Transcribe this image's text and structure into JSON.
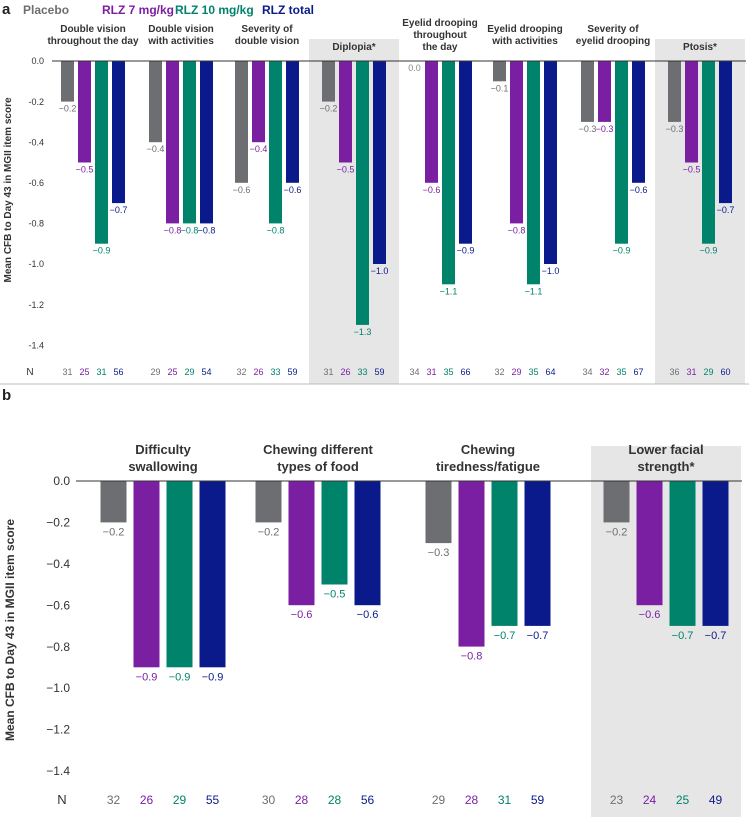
{
  "colors": {
    "placebo": "#6d6e71",
    "rlz7": "#7b1fa2",
    "rlz10": "#00836b",
    "rlztotal": "#0a1a8a",
    "highlight": "#e6e6e6"
  },
  "legend": {
    "items": [
      {
        "label": "Placebo",
        "color": "#6d6e71"
      },
      {
        "label": "RLZ 7 mg/kg",
        "color": "#7b1fa2"
      },
      {
        "label": "RLZ 10 mg/kg",
        "color": "#00836b"
      },
      {
        "label": "RLZ total",
        "color": "#0a1a8a"
      }
    ]
  },
  "chart_data": [
    {
      "panel_label": "a",
      "type": "bar",
      "ylabel": "Mean CFB to Day 43 in MGII item score",
      "ylim": [
        -1.4,
        0.0
      ],
      "yticks": [
        "0.0",
        "-0.2",
        "-0.4",
        "-0.6",
        "-0.8",
        "-1.0",
        "-1.2",
        "-1.4"
      ],
      "n_label": "N",
      "series_names": [
        "Placebo",
        "RLZ 7 mg/kg",
        "RLZ 10 mg/kg",
        "RLZ total"
      ],
      "groups": [
        {
          "title": [
            "Double vision",
            "throughout the day"
          ],
          "highlight": false,
          "values": [
            -0.2,
            -0.5,
            -0.9,
            -0.7
          ],
          "labels": [
            "−0.2",
            "−0.5",
            "−0.9",
            "−0.7"
          ],
          "n": [
            "31",
            "25",
            "31",
            "56"
          ]
        },
        {
          "title": [
            "Double vision",
            "with activities"
          ],
          "highlight": false,
          "values": [
            -0.4,
            -0.8,
            -0.8,
            -0.8
          ],
          "labels": [
            "−0.4",
            "−0.8",
            "−0.8",
            "−0.8"
          ],
          "n": [
            "29",
            "25",
            "29",
            "54"
          ]
        },
        {
          "title": [
            "Severity of",
            "double vision"
          ],
          "highlight": false,
          "values": [
            -0.6,
            -0.4,
            -0.8,
            -0.6
          ],
          "labels": [
            "−0.6",
            "−0.4",
            "−0.8",
            "−0.6"
          ],
          "n": [
            "32",
            "26",
            "33",
            "59"
          ]
        },
        {
          "title": [
            "Diplopia*"
          ],
          "highlight": true,
          "values": [
            -0.2,
            -0.5,
            -1.3,
            -1.0
          ],
          "labels": [
            "−0.2",
            "−0.5",
            "−1.3",
            "−1.0"
          ],
          "n": [
            "31",
            "26",
            "33",
            "59"
          ]
        },
        {
          "title": [
            "Eyelid drooping",
            "throughout",
            "the day"
          ],
          "highlight": false,
          "values": [
            0.0,
            -0.6,
            -1.1,
            -0.9
          ],
          "labels": [
            "0.0",
            "−0.6",
            "−1.1",
            "−0.9"
          ],
          "n": [
            "34",
            "31",
            "35",
            "66"
          ]
        },
        {
          "title": [
            "Eyelid drooping",
            "with activities"
          ],
          "highlight": false,
          "values": [
            -0.1,
            -0.8,
            -1.1,
            -1.0
          ],
          "labels": [
            "−0.1",
            "−0.8",
            "−1.1",
            "−1.0"
          ],
          "n": [
            "32",
            "29",
            "35",
            "64"
          ]
        },
        {
          "title": [
            "Severity of",
            "eyelid drooping"
          ],
          "highlight": false,
          "values": [
            -0.3,
            -0.3,
            -0.9,
            -0.6
          ],
          "labels": [
            "−0.3",
            "−0.3",
            "−0.9",
            "−0.6"
          ],
          "n": [
            "34",
            "32",
            "35",
            "67"
          ]
        },
        {
          "title": [
            "Ptosis*"
          ],
          "highlight": true,
          "values": [
            -0.3,
            -0.5,
            -0.9,
            -0.7
          ],
          "labels": [
            "−0.3",
            "−0.5",
            "−0.9",
            "−0.7"
          ],
          "n": [
            "36",
            "31",
            "29",
            "60"
          ]
        }
      ]
    },
    {
      "panel_label": "b",
      "type": "bar",
      "ylabel": "Mean CFB to Day 43 in MGII item score",
      "ylim": [
        -1.4,
        0.0
      ],
      "yticks": [
        "0.0",
        "−0.2",
        "−0.4",
        "−0.6",
        "−0.8",
        "−1.0",
        "−1.2",
        "−1.4"
      ],
      "n_label": "N",
      "series_names": [
        "Placebo",
        "RLZ 7 mg/kg",
        "RLZ 10 mg/kg",
        "RLZ total"
      ],
      "groups": [
        {
          "title": [
            "Difficulty",
            "swallowing"
          ],
          "highlight": false,
          "values": [
            -0.2,
            -0.9,
            -0.9,
            -0.9
          ],
          "labels": [
            "−0.2",
            "−0.9",
            "−0.9",
            "−0.9"
          ],
          "n": [
            "32",
            "26",
            "29",
            "55"
          ]
        },
        {
          "title": [
            "Chewing different",
            "types of food"
          ],
          "highlight": false,
          "values": [
            -0.2,
            -0.6,
            -0.5,
            -0.6
          ],
          "labels": [
            "−0.2",
            "−0.6",
            "−0.5",
            "−0.6"
          ],
          "n": [
            "30",
            "28",
            "28",
            "56"
          ]
        },
        {
          "title": [
            "Chewing",
            "tiredness/fatigue"
          ],
          "highlight": false,
          "values": [
            -0.3,
            -0.8,
            -0.7,
            -0.7
          ],
          "labels": [
            "−0.3",
            "−0.8",
            "−0.7",
            "−0.7"
          ],
          "n": [
            "29",
            "28",
            "31",
            "59"
          ]
        },
        {
          "title": [
            "Lower facial",
            "strength*"
          ],
          "highlight": true,
          "values": [
            -0.2,
            -0.6,
            -0.7,
            -0.7
          ],
          "labels": [
            "−0.2",
            "−0.6",
            "−0.7",
            "−0.7"
          ],
          "n": [
            "23",
            "24",
            "25",
            "49"
          ]
        }
      ]
    }
  ]
}
